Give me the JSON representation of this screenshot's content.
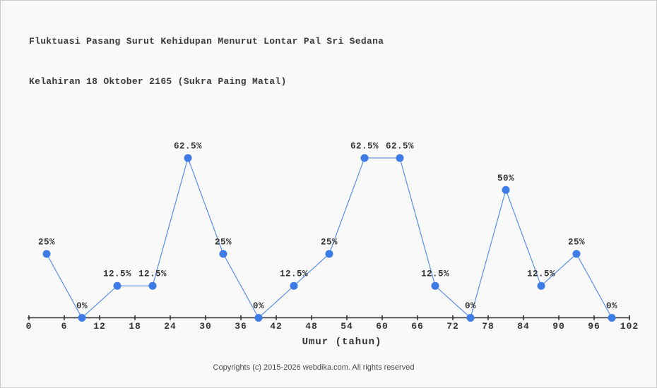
{
  "chart": {
    "title_line1": "Fluktuasi Pasang Surut Kehidupan Menurut Lontar Pal Sri Sedana",
    "title_line2": "Kelahiran 18 Oktober 2165 (Sukra Paing Matal)"
  },
  "chart_data": {
    "type": "line",
    "title": "Fluktuasi Pasang Surut Kehidupan Menurut Lontar Pal Sri Sedana",
    "subtitle": "Kelahiran 18 Oktober 2165 (Sukra Paing Matal)",
    "xlabel": "Umur (tahun)",
    "ylabel": "",
    "x": [
      3,
      9,
      15,
      21,
      27,
      33,
      39,
      45,
      51,
      57,
      63,
      69,
      75,
      81,
      87,
      93,
      99
    ],
    "values": [
      25,
      0,
      12.5,
      12.5,
      62.5,
      25,
      0,
      12.5,
      25,
      62.5,
      62.5,
      12.5,
      0,
      50,
      12.5,
      25,
      0
    ],
    "point_labels": [
      "25%",
      "0%",
      "12.5%",
      "12.5%",
      "62.5%",
      "25%",
      "0%",
      "12.5%",
      "25%",
      "62.5%",
      "62.5%",
      "12.5%",
      "0%",
      "50%",
      "12.5%",
      "25%",
      "0%"
    ],
    "xticks": [
      0,
      6,
      12,
      18,
      24,
      30,
      36,
      42,
      48,
      54,
      60,
      66,
      72,
      78,
      84,
      90,
      96,
      102
    ],
    "xlim": [
      0,
      102
    ],
    "ylim": [
      0,
      100
    ],
    "grid": false,
    "legend": false,
    "marker_color": "#3d7be6",
    "line_color": "#5b8ee6",
    "axis_color": "#2a2a2a",
    "label_color": "#333333"
  },
  "footer": {
    "copyright": "Copyrights (c) 2015-2026 webdika.com. All rights reserved"
  }
}
